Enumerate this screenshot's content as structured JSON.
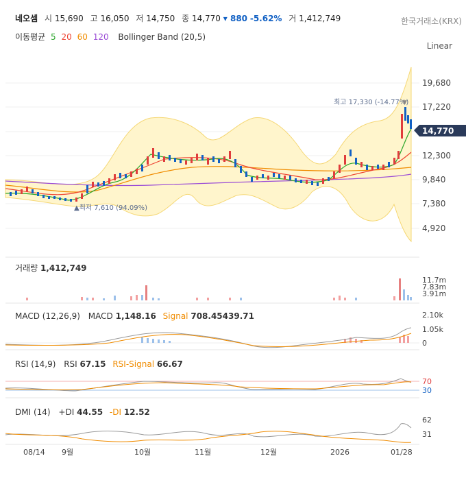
{
  "header": {
    "name": "네오셈",
    "open_label": "시",
    "open": "15,690",
    "high_label": "고",
    "high": "16,050",
    "low_label": "저",
    "low": "14,750",
    "close_label": "종",
    "close": "14,770",
    "change": "▾ 880",
    "change_pct": "-5.62%",
    "volume_label": "거",
    "volume": "1,412,749",
    "exchange": "한국거래소(KRX)"
  },
  "indicators": {
    "ma_label": "이동평균",
    "ma": [
      {
        "period": "5",
        "color": "#2aa52a"
      },
      {
        "period": "20",
        "color": "#ee4433"
      },
      {
        "period": "60",
        "color": "#f08c00"
      },
      {
        "period": "120",
        "color": "#9b4dd6"
      }
    ],
    "bollinger": "Bollinger Band (20,5)",
    "scale": "Linear"
  },
  "price_panel": {
    "y_ticks": [
      "19,680",
      "17,220",
      "12,300",
      "9,840",
      "7,380",
      "4,920"
    ],
    "current_price": "14,770",
    "high_note": "최고 17,330 (-14.77%)",
    "low_note": "최저 7,610 (94.09%)"
  },
  "volume_panel": {
    "label": "거래량",
    "value": "1,412,749",
    "y_ticks": [
      "11.7m",
      "7.83m",
      "3.91m"
    ]
  },
  "macd_panel": {
    "label": "MACD (12,26,9)",
    "macd_label": "MACD",
    "macd_value": "1,148.16",
    "signal_label": "Signal",
    "signal_value": "708.45439.71",
    "y_ticks": [
      "2.10k",
      "1.05k",
      "0"
    ]
  },
  "rsi_panel": {
    "label": "RSI (14,9)",
    "rsi_label": "RSI",
    "rsi_value": "67.15",
    "signal_label": "RSI-Signal",
    "signal_value": "66.67",
    "y_ticks": [
      "70",
      "30"
    ]
  },
  "dmi_panel": {
    "label": "DMI (14)",
    "pdi_label": "+DI",
    "pdi_value": "44.55",
    "mdi_label": "-DI",
    "mdi_value": "12.52",
    "y_ticks": [
      "62",
      "31"
    ]
  },
  "x_axis": [
    "08/14",
    "9월",
    "10월",
    "11월",
    "12월",
    "2026",
    "01/28"
  ],
  "chart_data": {
    "type": "line",
    "title": "",
    "x": [
      "08/14",
      "9월",
      "10월",
      "11월",
      "12월",
      "2026",
      "01/28"
    ],
    "series": [
      {
        "name": "네오셈",
        "values": [
          8300,
          8000,
          12300,
          11800,
          9600,
          9500,
          14770
        ]
      }
    ],
    "y_range": [
      4920,
      19680
    ],
    "annotations": [
      "최고 17,330 (-14.77%)",
      "최저 7,610 (94.09%)"
    ]
  }
}
